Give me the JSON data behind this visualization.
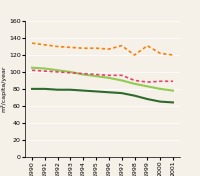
{
  "years": [
    1990,
    1991,
    1992,
    1993,
    1994,
    1995,
    1996,
    1997,
    1998,
    1999,
    2000,
    2001
  ],
  "nms_southern": [
    80,
    80,
    79,
    79,
    78,
    77,
    76,
    75,
    72,
    68,
    65,
    64
  ],
  "nms_northern": [
    105,
    104,
    102,
    100,
    97,
    95,
    93,
    90,
    86,
    83,
    80,
    78
  ],
  "we_central_nordic": [
    102,
    101,
    100,
    99,
    98,
    97,
    96,
    96,
    90,
    88,
    89,
    89
  ],
  "we_southern": [
    134,
    132,
    130,
    129,
    128,
    128,
    127,
    131,
    120,
    131,
    122,
    120
  ],
  "color_nms_southern": "#2d6a2d",
  "color_nms_northern": "#8fcc50",
  "color_we_central": "#e8426e",
  "color_we_southern": "#f5820a",
  "ylabel": "m³/capita/year",
  "ylim": [
    0,
    160
  ],
  "yticks": [
    0,
    20,
    40,
    60,
    80,
    100,
    120,
    140,
    160
  ]
}
